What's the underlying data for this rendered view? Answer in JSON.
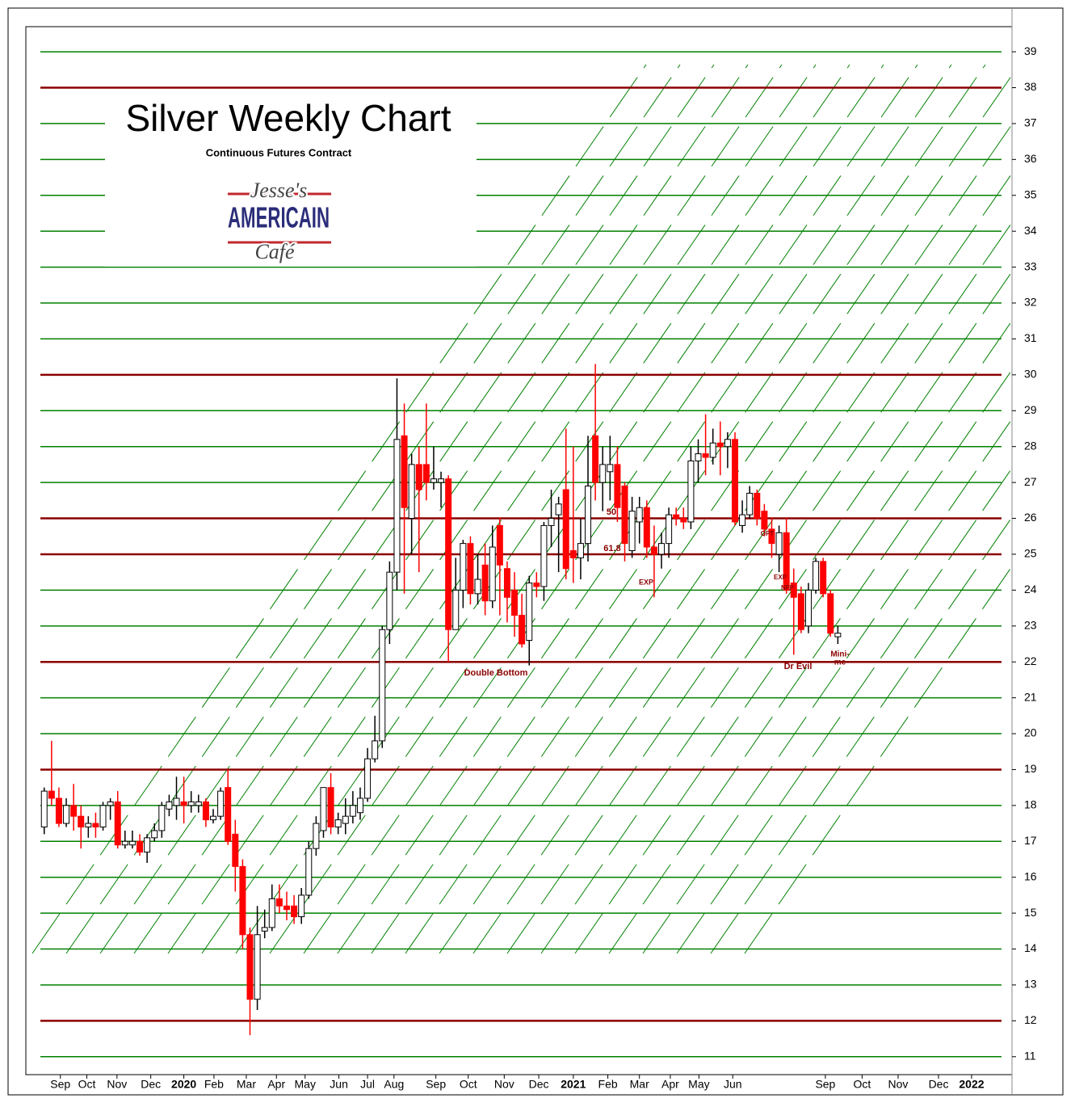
{
  "chart_data": {
    "type": "candlestick",
    "title": "Silver Weekly Chart",
    "subtitle": "Continuous Futures Contract",
    "logo": [
      "Jesse's",
      "AMERICAIN",
      "Café"
    ],
    "up_color": "#ffffff",
    "down_color": "#ff0000",
    "grid_color": "#008000",
    "level_color": "#8b0000",
    "grid": true,
    "open": [
      17.4,
      18.4,
      18.2,
      17.5,
      18.0,
      17.7,
      17.4,
      17.5,
      17.4,
      18.0,
      18.1,
      16.9,
      16.9,
      17.0,
      16.7,
      17.1,
      17.3,
      17.9,
      18.0,
      18.1,
      18.0,
      18.0,
      18.1,
      17.6,
      17.7,
      18.5,
      17.2,
      16.3,
      14.4,
      12.6,
      14.5,
      14.6,
      15.4,
      15.2,
      15.2,
      14.9,
      15.5,
      16.8,
      17.3,
      18.5,
      17.4,
      17.5,
      17.7,
      17.8,
      18.2,
      19.3,
      19.8,
      22.9,
      24.5,
      28.3,
      26.0,
      27.5,
      27.5,
      27.0,
      27.0,
      27.1,
      22.9,
      24.0,
      25.3,
      23.9,
      24.7,
      23.7,
      25.8,
      24.6,
      24.0,
      23.3,
      22.6,
      24.2,
      24.1,
      25.8,
      26.1,
      26.8,
      25.1,
      24.9,
      25.3,
      28.3,
      27.0,
      27.3,
      27.5,
      26.9,
      25.1,
      25.9,
      26.3,
      25.2,
      25.0,
      25.3,
      26.1,
      26.0,
      25.9,
      27.6,
      27.8,
      27.7,
      28.1,
      28.0,
      28.2,
      25.8,
      26.1,
      26.7,
      26.2,
      25.7,
      25.0,
      25.6,
      24.2,
      23.9,
      23.0,
      24.0,
      24.8,
      23.9,
      22.7
    ],
    "high": [
      18.5,
      19.8,
      18.5,
      18.2,
      18.6,
      18.0,
      17.7,
      17.8,
      18.1,
      18.2,
      18.4,
      17.3,
      17.3,
      17.2,
      17.2,
      17.5,
      18.1,
      18.3,
      18.8,
      18.8,
      18.4,
      18.3,
      18.2,
      17.9,
      18.5,
      19.0,
      17.6,
      16.5,
      14.6,
      15.2,
      15.1,
      15.8,
      15.8,
      15.6,
      15.5,
      15.7,
      17.0,
      17.7,
      18.5,
      18.9,
      17.8,
      18.2,
      18.4,
      18.5,
      19.6,
      20.5,
      23.0,
      24.8,
      29.9,
      29.2,
      27.8,
      28.0,
      29.2,
      28.0,
      27.3,
      27.2,
      24.9,
      25.4,
      25.5,
      25.0,
      25.3,
      25.8,
      26.0,
      24.8,
      24.5,
      23.9,
      24.4,
      24.5,
      25.9,
      26.8,
      26.6,
      28.5,
      28.0,
      26.0,
      28.3,
      30.3,
      28.0,
      28.3,
      28.0,
      27.0,
      26.6,
      26.6,
      26.5,
      25.8,
      25.6,
      26.3,
      26.3,
      26.3,
      28.0,
      28.2,
      28.9,
      28.5,
      28.7,
      28.4,
      28.4,
      26.5,
      26.9,
      26.8,
      26.4,
      26.0,
      25.8,
      26.0,
      24.6,
      24.1,
      24.2,
      24.9,
      24.9,
      24.0,
      23.0
    ],
    "low": [
      17.2,
      18.0,
      17.4,
      17.4,
      17.3,
      16.8,
      17.1,
      17.1,
      17.3,
      17.6,
      16.8,
      16.8,
      16.8,
      16.6,
      16.4,
      17.0,
      17.1,
      17.7,
      17.6,
      17.5,
      17.8,
      17.8,
      17.4,
      17.5,
      17.6,
      16.9,
      15.6,
      14.0,
      11.6,
      12.3,
      14.3,
      14.5,
      15.0,
      14.8,
      14.7,
      14.7,
      15.4,
      16.6,
      17.1,
      17.2,
      17.2,
      17.2,
      17.5,
      17.6,
      18.1,
      19.2,
      19.6,
      22.5,
      24.0,
      23.9,
      25.0,
      24.5,
      26.5,
      26.8,
      26.3,
      22.0,
      22.9,
      23.5,
      23.6,
      23.6,
      23.3,
      23.5,
      23.3,
      23.1,
      22.7,
      22.4,
      21.9,
      23.8,
      23.7,
      25.2,
      24.5,
      24.3,
      24.2,
      24.3,
      24.8,
      26.5,
      26.2,
      26.5,
      25.9,
      24.8,
      24.9,
      25.3,
      24.9,
      23.8,
      24.6,
      24.9,
      25.8,
      25.7,
      25.7,
      27.0,
      27.2,
      27.5,
      27.2,
      27.4,
      25.8,
      25.6,
      26.0,
      25.8,
      25.5,
      24.9,
      24.5,
      23.9,
      22.2,
      22.8,
      22.8,
      23.9,
      23.8,
      22.7,
      22.5
    ],
    "close": [
      18.4,
      18.2,
      17.5,
      18.0,
      17.7,
      17.4,
      17.5,
      17.4,
      18.0,
      18.1,
      16.9,
      17.0,
      17.0,
      16.7,
      17.1,
      17.3,
      18.0,
      18.1,
      18.2,
      18.0,
      18.1,
      18.1,
      17.6,
      17.7,
      18.4,
      17.0,
      16.3,
      14.4,
      12.6,
      14.4,
      14.6,
      15.4,
      15.2,
      15.1,
      14.9,
      15.5,
      16.8,
      17.5,
      18.5,
      17.4,
      17.6,
      17.7,
      18.0,
      18.2,
      19.3,
      19.8,
      22.9,
      24.5,
      28.2,
      26.3,
      27.5,
      26.8,
      27.0,
      27.1,
      27.1,
      22.9,
      24.0,
      25.3,
      23.9,
      24.3,
      23.7,
      25.2,
      24.7,
      23.8,
      23.3,
      22.5,
      24.2,
      24.1,
      25.8,
      26.0,
      26.4,
      24.6,
      24.9,
      25.3,
      26.9,
      27.0,
      27.5,
      27.5,
      26.3,
      25.3,
      26.2,
      26.3,
      25.2,
      25.0,
      25.3,
      26.1,
      26.0,
      25.9,
      27.6,
      27.8,
      27.7,
      28.1,
      28.0,
      28.2,
      25.9,
      26.1,
      26.7,
      26.0,
      25.7,
      25.3,
      25.6,
      24.0,
      23.8,
      22.9,
      24.0,
      24.8,
      23.9,
      22.8,
      22.8
    ],
    "levels": [
      38,
      30,
      26,
      25,
      22,
      19,
      12
    ],
    "annotations": [
      "50",
      "61.8",
      "EXP",
      "OPT",
      "EXP",
      "NFP",
      "Double Bottom",
      "Dr Evil",
      "Mini-",
      "me"
    ],
    "ylim": [
      10.5,
      39.7
    ],
    "yticks": [
      11,
      12,
      13,
      14,
      15,
      16,
      17,
      18,
      19,
      20,
      21,
      22,
      23,
      24,
      25,
      26,
      27,
      28,
      29,
      30,
      31,
      32,
      33,
      34,
      35,
      36,
      37,
      38,
      39
    ],
    "xlim": [
      -2.5,
      131.7
    ],
    "xticks": [
      {
        "value": 2.2,
        "label": "Sep"
      },
      {
        "value": 5.8,
        "label": "Oct"
      },
      {
        "value": 9.9,
        "label": "Nov"
      },
      {
        "value": 14.5,
        "label": "Dec"
      },
      {
        "value": 19,
        "label": "2020"
      },
      {
        "value": 23.1,
        "label": "Feb"
      },
      {
        "value": 27.5,
        "label": "Mar"
      },
      {
        "value": 31.6,
        "label": "Apr"
      },
      {
        "value": 35.5,
        "label": "May"
      },
      {
        "value": 40.1,
        "label": "Jun"
      },
      {
        "value": 44,
        "label": "Jul"
      },
      {
        "value": 47.6,
        "label": "Aug"
      },
      {
        "value": 53.3,
        "label": "Sep"
      },
      {
        "value": 57.7,
        "label": "Oct"
      },
      {
        "value": 62.6,
        "label": "Nov"
      },
      {
        "value": 67.3,
        "label": "Dec"
      },
      {
        "value": 72,
        "label": "2021"
      },
      {
        "value": 76.7,
        "label": "Feb"
      },
      {
        "value": 81,
        "label": "Mar"
      },
      {
        "value": 85.2,
        "label": "Apr"
      },
      {
        "value": 89.1,
        "label": "May"
      },
      {
        "value": 93.7,
        "label": "Jun"
      },
      {
        "value": 106.3,
        "label": "Sep"
      },
      {
        "value": 111.3,
        "label": "Oct"
      },
      {
        "value": 116.2,
        "label": "Nov"
      },
      {
        "value": 121.7,
        "label": "Dec"
      },
      {
        "value": 126.2,
        "label": "2022"
      }
    ]
  }
}
